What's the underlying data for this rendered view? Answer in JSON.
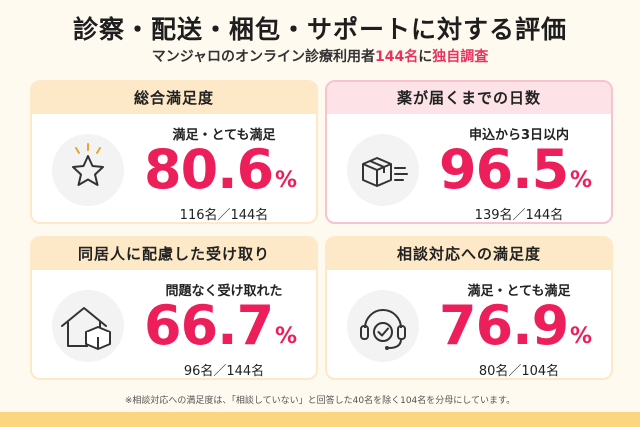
{
  "title": "診察・配送・梱包・サポートに対する評価",
  "subtitle": {
    "prefix": "マンジャロのオンライン診療利用者",
    "count": "144名",
    "mid": "に",
    "suffix": "独自調査"
  },
  "cards": [
    {
      "header": "総合満足度",
      "icon": "star-icon",
      "label": "満足・とても満足",
      "value": "80.6",
      "unit": "%",
      "count": "116名／144名"
    },
    {
      "header": "薬が届くまでの日数",
      "icon": "delivery-box-icon",
      "label": "申込から3日以内",
      "value": "96.5",
      "unit": "%",
      "count": "139名／144名"
    },
    {
      "header": "同居人に配慮した受け取り",
      "icon": "house-box-icon",
      "label": "問題なく受け取れた",
      "value": "66.7",
      "unit": "%",
      "count": "96名／144名"
    },
    {
      "header": "相談対応への満足度",
      "icon": "headset-check-icon",
      "label": "満足・とても満足",
      "value": "76.9",
      "unit": "%",
      "count": "80名／104名"
    }
  ],
  "footnote": "※相談対応への満足度は、「相談していない」と回答した40名を除く104名を分母にしています。",
  "colors": {
    "accent": "#ec1f5b",
    "card_header": "#fde9c7",
    "card_header_pink": "#fde2e7",
    "background": "#fffaf0"
  }
}
